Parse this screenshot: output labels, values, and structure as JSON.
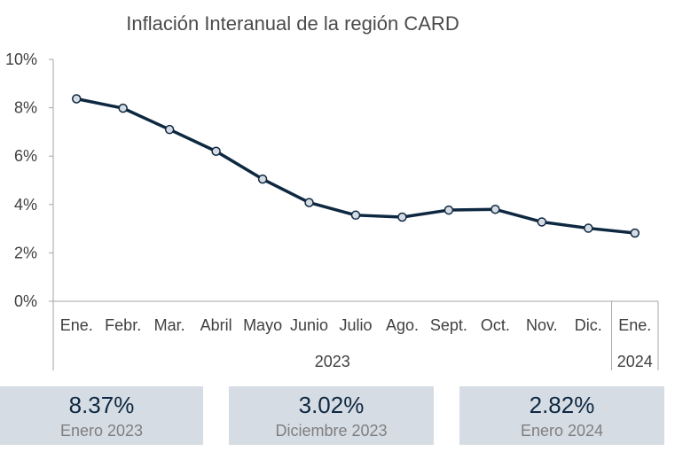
{
  "chart_data": {
    "type": "line",
    "title": "Inflación Interanual de la región CARD",
    "categories": [
      "Ene.",
      "Febr.",
      "Mar.",
      "Abril",
      "Mayo",
      "Junio",
      "Julio",
      "Ago.",
      "Sept.",
      "Oct.",
      "Nov.",
      "Dic.",
      "Ene."
    ],
    "year_groups": [
      {
        "label": "2023",
        "span": 12
      },
      {
        "label": "2024",
        "span": 1
      }
    ],
    "series": [
      {
        "values": [
          8.37,
          7.98,
          7.1,
          6.2,
          5.05,
          4.08,
          3.56,
          3.48,
          3.77,
          3.8,
          3.28,
          3.02,
          2.82
        ]
      }
    ],
    "ylim": [
      0,
      10
    ],
    "yticks": [
      "0%",
      "2%",
      "4%",
      "6%",
      "8%",
      "10%"
    ],
    "ytick_values": [
      0,
      2,
      4,
      6,
      8,
      10
    ],
    "line_color": "#0e2841",
    "marker_fill": "#d6dce4",
    "grid": false
  },
  "cards": [
    {
      "value": "8.37%",
      "label": "Enero 2023"
    },
    {
      "value": "3.02%",
      "label": "Diciembre 2023"
    },
    {
      "value": "2.82%",
      "label": "Enero 2024"
    }
  ]
}
